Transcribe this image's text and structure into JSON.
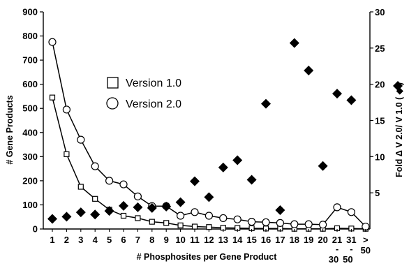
{
  "chart_data": {
    "type": "scatter",
    "xlabel": "# Phosphosites per Gene Product",
    "ylabel": "# Gene Products",
    "y2label": "Fold Δ V 2.0/ V 1.0 ( ◆ )",
    "categories": [
      "1",
      "2",
      "3",
      "4",
      "5",
      "6",
      "7",
      "8",
      "9",
      "10",
      "11",
      "12",
      "13",
      "14",
      "15",
      "16",
      "17",
      "18",
      "19",
      "20",
      "21-30",
      "31-50",
      ">50"
    ],
    "category_tick_lines": [
      [
        "1"
      ],
      [
        "2"
      ],
      [
        "3"
      ],
      [
        "4"
      ],
      [
        "5"
      ],
      [
        "6"
      ],
      [
        "7"
      ],
      [
        "8"
      ],
      [
        "9"
      ],
      [
        "10"
      ],
      [
        "11"
      ],
      [
        "12"
      ],
      [
        "13"
      ],
      [
        "14"
      ],
      [
        "15"
      ],
      [
        "16"
      ],
      [
        "17"
      ],
      [
        "18"
      ],
      [
        "19"
      ],
      [
        "20"
      ],
      [
        "21",
        "-",
        "30"
      ],
      [
        "31",
        "-",
        "50"
      ],
      [
        ">",
        "50"
      ]
    ],
    "ylim": [
      0,
      900
    ],
    "yticks": [
      0,
      100,
      200,
      300,
      400,
      500,
      600,
      700,
      800,
      900
    ],
    "y2lim": [
      0,
      30
    ],
    "y2ticks": [
      5,
      10,
      15,
      20,
      25,
      30
    ],
    "legend_position": "center-left",
    "series": [
      {
        "name": "Version 1.0",
        "marker": "open-square",
        "axis": "left",
        "values": [
          545,
          310,
          175,
          125,
          80,
          55,
          45,
          30,
          25,
          15,
          10,
          8,
          5,
          4,
          3,
          2,
          2,
          1,
          1,
          1,
          3,
          2,
          1
        ]
      },
      {
        "name": "Version 2.0",
        "marker": "open-circle",
        "axis": "left",
        "values": [
          775,
          495,
          370,
          260,
          200,
          185,
          135,
          95,
          95,
          55,
          70,
          55,
          45,
          40,
          30,
          28,
          25,
          20,
          20,
          18,
          90,
          70,
          10
        ]
      },
      {
        "name": "Fold Δ V 2.0/ V 1.0",
        "marker": "filled-diamond",
        "axis": "right",
        "values": [
          1.4,
          1.7,
          2.3,
          2.0,
          2.5,
          3.2,
          3.0,
          2.9,
          3.1,
          3.7,
          6.6,
          4.4,
          8.5,
          9.5,
          6.8,
          17.3,
          2.6,
          25.7,
          21.9,
          8.7,
          18.7,
          17.8,
          null
        ]
      }
    ]
  }
}
